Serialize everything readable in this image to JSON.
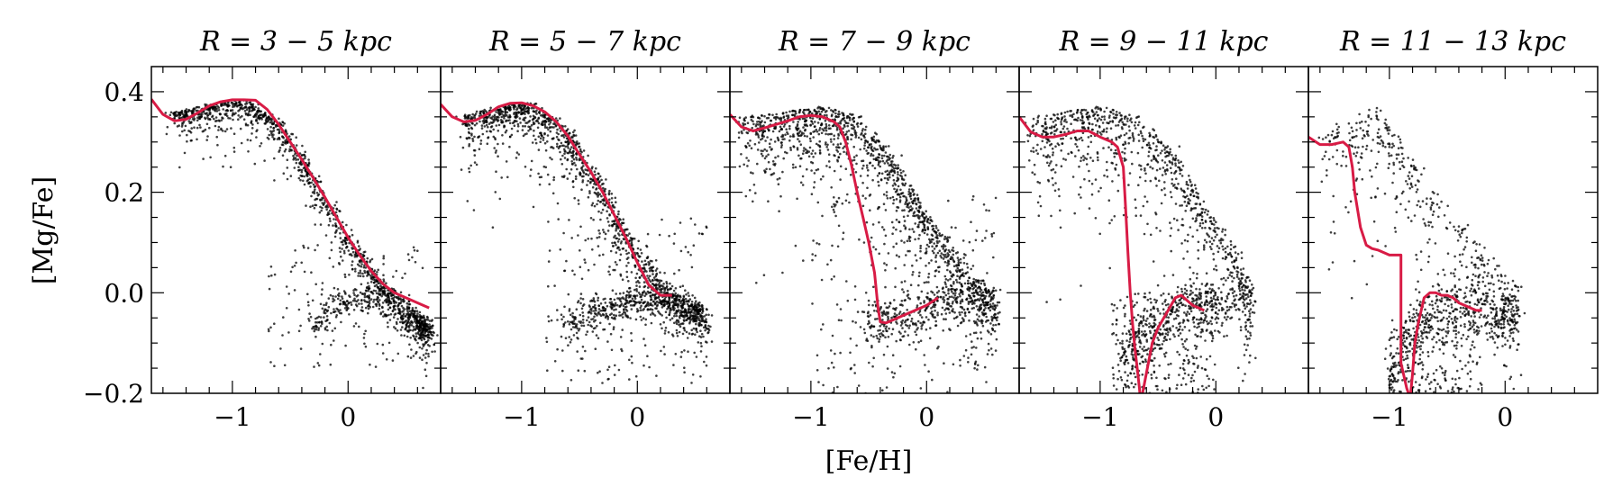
{
  "figure": {
    "xlabel": "[Fe/H]",
    "ylabel": "[Mg/Fe]",
    "line_color": "#d81b45",
    "point_color": "#000000"
  },
  "chart_data": [
    {
      "type": "scatter",
      "title": "R = 3 − 5 kpc",
      "xlim": [
        -1.7,
        0.8
      ],
      "ylim": [
        -0.2,
        0.45
      ],
      "xticks": [
        -1,
        0
      ],
      "yticks": [
        -0.2,
        0.0,
        0.2,
        0.4
      ],
      "yticklabels": [
        "−0.2",
        "0.0",
        "0.2",
        "0.4"
      ],
      "xticklabels": [
        "−1",
        "0"
      ],
      "series": [
        {
          "kind": "line",
          "x": [
            -1.7,
            -1.6,
            -1.5,
            -1.4,
            -1.3,
            -1.2,
            -1.1,
            -1.0,
            -0.9,
            -0.8,
            -0.7,
            -0.6,
            -0.5,
            -0.4,
            -0.3,
            -0.2,
            -0.1,
            0.0,
            0.1,
            0.2,
            0.3,
            0.4,
            0.5,
            0.6,
            0.7
          ],
          "y": [
            0.385,
            0.355,
            0.342,
            0.345,
            0.358,
            0.372,
            0.38,
            0.384,
            0.384,
            0.383,
            0.365,
            0.335,
            0.3,
            0.265,
            0.228,
            0.19,
            0.15,
            0.11,
            0.075,
            0.043,
            0.018,
            0.0,
            -0.01,
            -0.02,
            -0.03
          ]
        },
        {
          "kind": "scatter",
          "ridge": [
            [
              -1.5,
              0.36
            ],
            [
              -1.2,
              0.375
            ],
            [
              -0.9,
              0.385
            ],
            [
              -0.6,
              0.34
            ],
            [
              -0.3,
              0.235
            ],
            [
              0.0,
              0.115
            ],
            [
              0.3,
              0.02
            ],
            [
              0.6,
              -0.04
            ],
            [
              0.7,
              -0.07
            ]
          ],
          "spread": 0.012,
          "n": 1300
        },
        {
          "kind": "scatter",
          "arc": [
            [
              -0.3,
              -0.06
            ],
            [
              -0.1,
              -0.015
            ],
            [
              0.1,
              0.0
            ],
            [
              0.3,
              -0.01
            ],
            [
              0.5,
              -0.04
            ],
            [
              0.7,
              -0.07
            ]
          ],
          "spread": 0.012,
          "n": 300
        },
        {
          "kind": "scatter",
          "box": [
            [
              -0.7,
              0.7
            ],
            [
              -0.15,
              0.1
            ]
          ],
          "n": 120
        }
      ]
    },
    {
      "type": "scatter",
      "title": "R = 5 − 7 kpc",
      "xlim": [
        -1.7,
        0.8
      ],
      "ylim": [
        -0.2,
        0.45
      ],
      "xticks": [
        -1,
        0
      ],
      "xticklabels": [
        "−1",
        "0"
      ],
      "series": [
        {
          "kind": "line",
          "x": [
            -1.7,
            -1.6,
            -1.5,
            -1.4,
            -1.3,
            -1.2,
            -1.1,
            -1.0,
            -0.9,
            -0.8,
            -0.7,
            -0.6,
            -0.5,
            -0.4,
            -0.3,
            -0.2,
            -0.1,
            0.0,
            0.1,
            0.2,
            0.3
          ],
          "y": [
            0.375,
            0.35,
            0.34,
            0.343,
            0.355,
            0.37,
            0.377,
            0.378,
            0.372,
            0.36,
            0.34,
            0.312,
            0.275,
            0.24,
            0.2,
            0.155,
            0.11,
            0.06,
            0.015,
            -0.005,
            -0.005
          ]
        },
        {
          "kind": "scatter",
          "ridge": [
            [
              -1.5,
              0.35
            ],
            [
              -1.2,
              0.372
            ],
            [
              -0.9,
              0.378
            ],
            [
              -0.6,
              0.325
            ],
            [
              -0.3,
              0.215
            ],
            [
              0.0,
              0.085
            ],
            [
              0.3,
              0.0
            ],
            [
              0.6,
              -0.03
            ]
          ],
          "spread": 0.02,
          "n": 1300
        },
        {
          "kind": "scatter",
          "arc": [
            [
              -0.6,
              -0.05
            ],
            [
              -0.3,
              -0.02
            ],
            [
              0.0,
              -0.005
            ],
            [
              0.3,
              -0.005
            ],
            [
              0.6,
              -0.05
            ]
          ],
          "spread": 0.015,
          "n": 500
        },
        {
          "kind": "scatter",
          "box": [
            [
              -0.8,
              0.6
            ],
            [
              -0.18,
              0.15
            ]
          ],
          "n": 160
        }
      ]
    },
    {
      "type": "scatter",
      "title": "R = 7 − 9 kpc",
      "xlim": [
        -1.7,
        0.8
      ],
      "ylim": [
        -0.2,
        0.45
      ],
      "xticks": [
        -1,
        0
      ],
      "xticklabels": [
        "−1",
        "0"
      ],
      "series": [
        {
          "kind": "line",
          "x": [
            -1.7,
            -1.6,
            -1.5,
            -1.4,
            -1.3,
            -1.2,
            -1.1,
            -1.0,
            -0.9,
            -0.8,
            -0.75,
            -0.7,
            -0.65,
            -0.6,
            -0.55,
            -0.5,
            -0.45,
            -0.42,
            -0.4,
            -0.35,
            -0.3,
            -0.2,
            -0.1,
            0.0,
            0.1
          ],
          "y": [
            0.355,
            0.33,
            0.322,
            0.328,
            0.335,
            0.342,
            0.35,
            0.353,
            0.35,
            0.34,
            0.33,
            0.3,
            0.255,
            0.2,
            0.15,
            0.1,
            0.04,
            -0.03,
            -0.058,
            -0.06,
            -0.055,
            -0.045,
            -0.035,
            -0.025,
            -0.01
          ]
        },
        {
          "kind": "scatter",
          "ridge": [
            [
              -1.6,
              0.35
            ],
            [
              -1.2,
              0.36
            ],
            [
              -0.9,
              0.37
            ],
            [
              -0.6,
              0.35
            ],
            [
              -0.3,
              0.27
            ],
            [
              0.0,
              0.16
            ],
            [
              0.3,
              0.06
            ],
            [
              0.6,
              -0.005
            ]
          ],
          "spread": 0.03,
          "n": 1300
        },
        {
          "kind": "scatter",
          "arc": [
            [
              -0.5,
              -0.05
            ],
            [
              -0.2,
              -0.03
            ],
            [
              0.1,
              -0.01
            ],
            [
              0.4,
              0.0
            ],
            [
              0.6,
              -0.01
            ]
          ],
          "spread": 0.02,
          "n": 400
        },
        {
          "kind": "scatter",
          "box": [
            [
              -1.0,
              0.6
            ],
            [
              -0.2,
              0.2
            ]
          ],
          "n": 200
        }
      ]
    },
    {
      "type": "scatter",
      "title": "R = 9 − 11 kpc",
      "xlim": [
        -1.7,
        0.8
      ],
      "ylim": [
        -0.2,
        0.45
      ],
      "xticks": [
        -1,
        0
      ],
      "xticklabels": [
        "−1",
        "0"
      ],
      "series": [
        {
          "kind": "line",
          "x": [
            -1.7,
            -1.6,
            -1.5,
            -1.4,
            -1.3,
            -1.2,
            -1.1,
            -1.0,
            -0.9,
            -0.85,
            -0.8,
            -0.78,
            -0.76,
            -0.74,
            -0.72,
            -0.7,
            -0.68,
            -0.66,
            -0.65,
            -0.6,
            -0.55,
            -0.5,
            -0.45,
            -0.4,
            -0.35,
            -0.3,
            -0.2,
            -0.1
          ],
          "y": [
            0.35,
            0.32,
            0.31,
            0.31,
            0.315,
            0.322,
            0.322,
            0.31,
            0.3,
            0.29,
            0.25,
            0.17,
            0.08,
            0.0,
            -0.06,
            -0.11,
            -0.15,
            -0.19,
            -0.22,
            -0.16,
            -0.1,
            -0.07,
            -0.05,
            -0.03,
            -0.01,
            -0.005,
            -0.025,
            -0.035
          ]
        },
        {
          "kind": "scatter",
          "ridge": [
            [
              -1.6,
              0.35
            ],
            [
              -1.3,
              0.36
            ],
            [
              -1.0,
              0.37
            ],
            [
              -0.7,
              0.35
            ],
            [
              -0.4,
              0.29
            ],
            [
              -0.1,
              0.18
            ],
            [
              0.2,
              0.07
            ],
            [
              0.3,
              0.0
            ]
          ],
          "spread": 0.035,
          "n": 900
        },
        {
          "kind": "scatter",
          "arc": [
            [
              -0.8,
              -0.12
            ],
            [
              -0.6,
              -0.06
            ],
            [
              -0.4,
              -0.02
            ],
            [
              -0.2,
              -0.01
            ],
            [
              0.0,
              -0.01
            ],
            [
              0.3,
              0.0
            ]
          ],
          "spread": 0.025,
          "n": 450
        },
        {
          "kind": "scatter",
          "box": [
            [
              -0.9,
              0.0
            ],
            [
              -0.2,
              0.0
            ]
          ],
          "n": 250
        }
      ]
    },
    {
      "type": "scatter",
      "title": "R = 11 − 13 kpc",
      "xlim": [
        -1.7,
        0.8
      ],
      "ylim": [
        -0.2,
        0.45
      ],
      "xticks": [
        -1,
        0
      ],
      "xticklabels": [
        "−1",
        "0"
      ],
      "series": [
        {
          "kind": "line",
          "x": [
            -1.7,
            -1.6,
            -1.5,
            -1.4,
            -1.35,
            -1.32,
            -1.3,
            -1.25,
            -1.2,
            -1.15,
            -1.1,
            -1.0,
            -0.9,
            -0.9,
            -0.88,
            -0.85,
            -0.82,
            -0.8,
            -0.78,
            -0.75,
            -0.72,
            -0.7,
            -0.65,
            -0.6,
            -0.55,
            -0.5,
            -0.45,
            -0.4,
            -0.35,
            -0.3,
            -0.25,
            -0.2
          ],
          "y": [
            0.31,
            0.295,
            0.295,
            0.3,
            0.29,
            0.25,
            0.2,
            0.13,
            0.095,
            0.088,
            0.085,
            0.075,
            0.075,
            -0.14,
            -0.16,
            -0.19,
            -0.21,
            -0.16,
            -0.1,
            -0.06,
            -0.03,
            -0.01,
            0.0,
            0.0,
            -0.005,
            -0.005,
            -0.01,
            -0.02,
            -0.025,
            -0.03,
            -0.035,
            -0.035
          ]
        },
        {
          "kind": "scatter",
          "ridge": [
            [
              -1.6,
              0.33
            ],
            [
              -1.3,
              0.34
            ],
            [
              -1.1,
              0.37
            ],
            [
              -0.9,
              0.3
            ],
            [
              -0.6,
              0.2
            ],
            [
              -0.3,
              0.12
            ],
            [
              -0.1,
              0.06
            ],
            [
              0.1,
              0.0
            ]
          ],
          "spread": 0.04,
          "n": 420
        },
        {
          "kind": "scatter",
          "arc": [
            [
              -1.0,
              -0.15
            ],
            [
              -0.8,
              -0.06
            ],
            [
              -0.6,
              -0.01
            ],
            [
              -0.4,
              0.0
            ],
            [
              -0.2,
              -0.02
            ],
            [
              0.0,
              -0.02
            ],
            [
              0.1,
              -0.01
            ]
          ],
          "spread": 0.025,
          "n": 500
        },
        {
          "kind": "scatter",
          "box": [
            [
              -1.0,
              -0.2
            ],
            [
              -0.2,
              -0.05
            ]
          ],
          "n": 200
        }
      ]
    }
  ]
}
